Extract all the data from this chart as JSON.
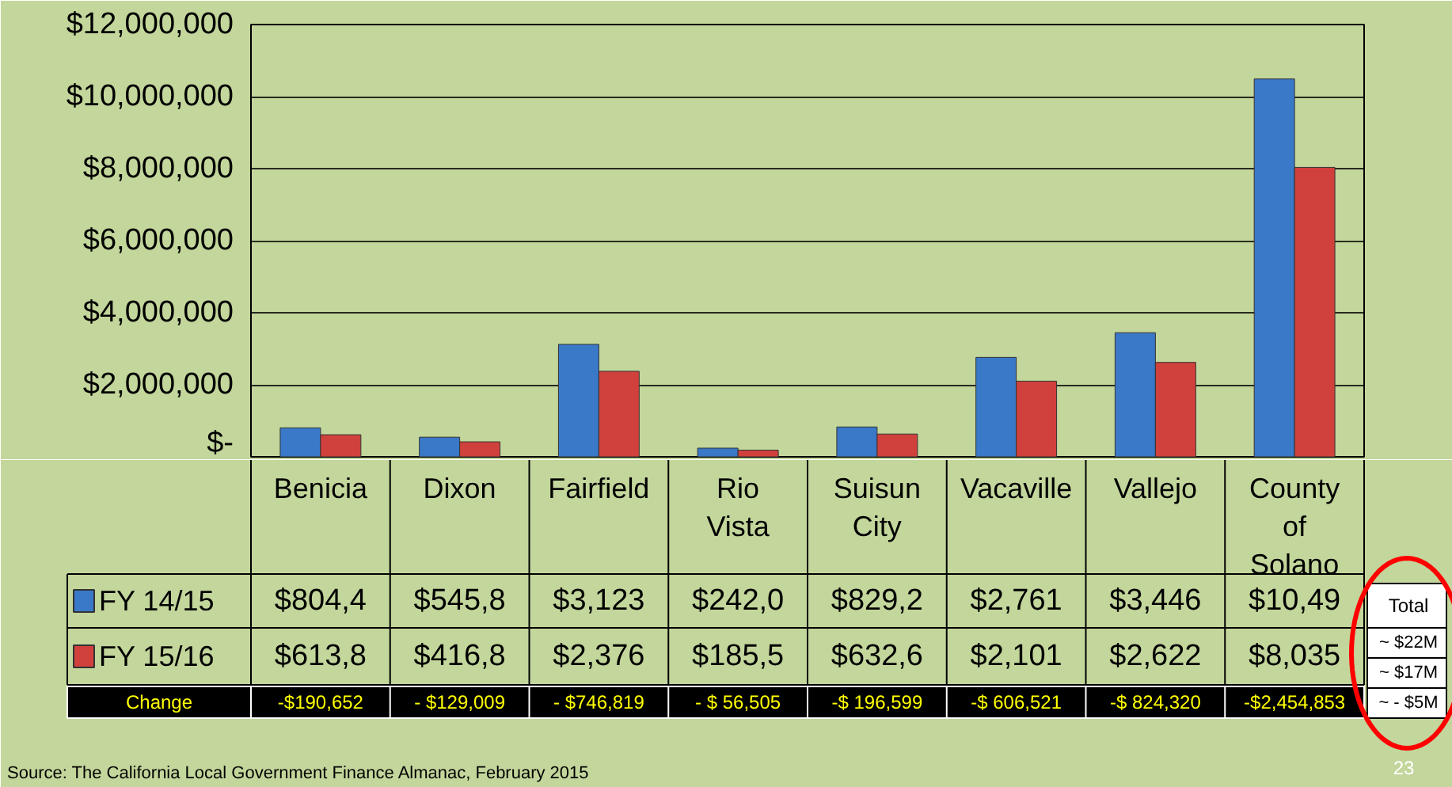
{
  "chart_data": {
    "type": "bar",
    "categories": [
      "Benicia",
      "Dixon",
      "Fairfield",
      "Rio Vista",
      "Suisun City",
      "Vacaville",
      "Vallejo",
      "County of Solano"
    ],
    "series": [
      {
        "name": "FY 14/15",
        "color": "#3a78c8",
        "values": [
          804400,
          545800,
          3123000,
          242000,
          829200,
          2761000,
          3446000,
          10490000
        ]
      },
      {
        "name": "FY 15/16",
        "color": "#d0413d",
        "values": [
          613800,
          416800,
          2376000,
          185500,
          632600,
          2101000,
          2622000,
          8035000
        ]
      }
    ],
    "ylim": [
      0,
      12000000
    ],
    "yticks": [
      {
        "value": 0,
        "label": "$-"
      },
      {
        "value": 2000000,
        "label": "$2,000,000"
      },
      {
        "value": 4000000,
        "label": "$4,000,000"
      },
      {
        "value": 6000000,
        "label": "$6,000,000"
      },
      {
        "value": 8000000,
        "label": "$8,000,000"
      },
      {
        "value": 10000000,
        "label": "$10,000,000"
      },
      {
        "value": 12000000,
        "label": "$12,000,000"
      }
    ],
    "grid": "y",
    "legend": "bottom left",
    "annotations": [
      "$804,4",
      "$545,8",
      "$3,123",
      "$242,0",
      "$829,2",
      "$2,761",
      "$3,446",
      "$10,49",
      "$613,8",
      "$416,8",
      "$2,376",
      "$185,5",
      "$632,6",
      "$2,101",
      "$2,622",
      "$8,035",
      "Change",
      "-$190,652",
      "- $129,009",
      "- $746,819",
      "- $ 56,505",
      "-$ 196,599",
      "-$ 606,521",
      "-$ 824,320",
      "-$2,454,853",
      "Total",
      "~ $22M",
      "~ $17M",
      "~ - $5M",
      "23",
      "Source: The California Local Government Finance Almanac, February 2015"
    ]
  }
}
